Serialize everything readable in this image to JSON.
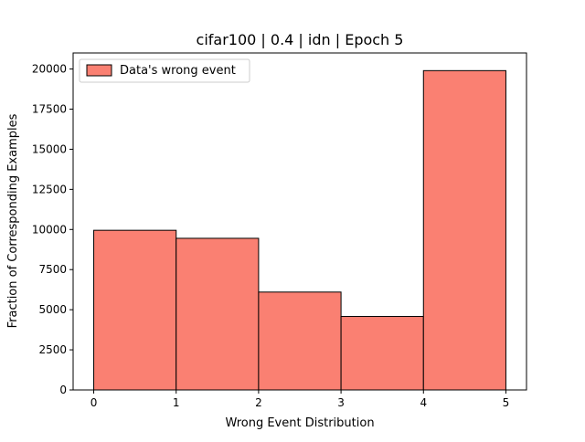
{
  "chart_data": {
    "type": "bar",
    "title": "cifar100 | 0.4 | idn | Epoch 5",
    "xlabel": "Wrong Event Distribution",
    "ylabel": "Fraction of Corresponding Examples",
    "bins": [
      [
        0,
        1
      ],
      [
        1,
        2
      ],
      [
        2,
        3
      ],
      [
        3,
        4
      ],
      [
        4,
        5
      ]
    ],
    "series": [
      {
        "name": "Data's wrong event",
        "values": [
          9950,
          9450,
          6100,
          4580,
          19900
        ],
        "color": "#fa8072",
        "edge_color": "#000000"
      }
    ],
    "xlim": [
      -0.25,
      5.25
    ],
    "ylim": [
      0,
      21000
    ],
    "x_ticks": [
      0,
      1,
      2,
      3,
      4,
      5
    ],
    "y_ticks": [
      0,
      2500,
      5000,
      7500,
      10000,
      12500,
      15000,
      17500,
      20000
    ],
    "grid": false,
    "legend_position": "top-left"
  }
}
